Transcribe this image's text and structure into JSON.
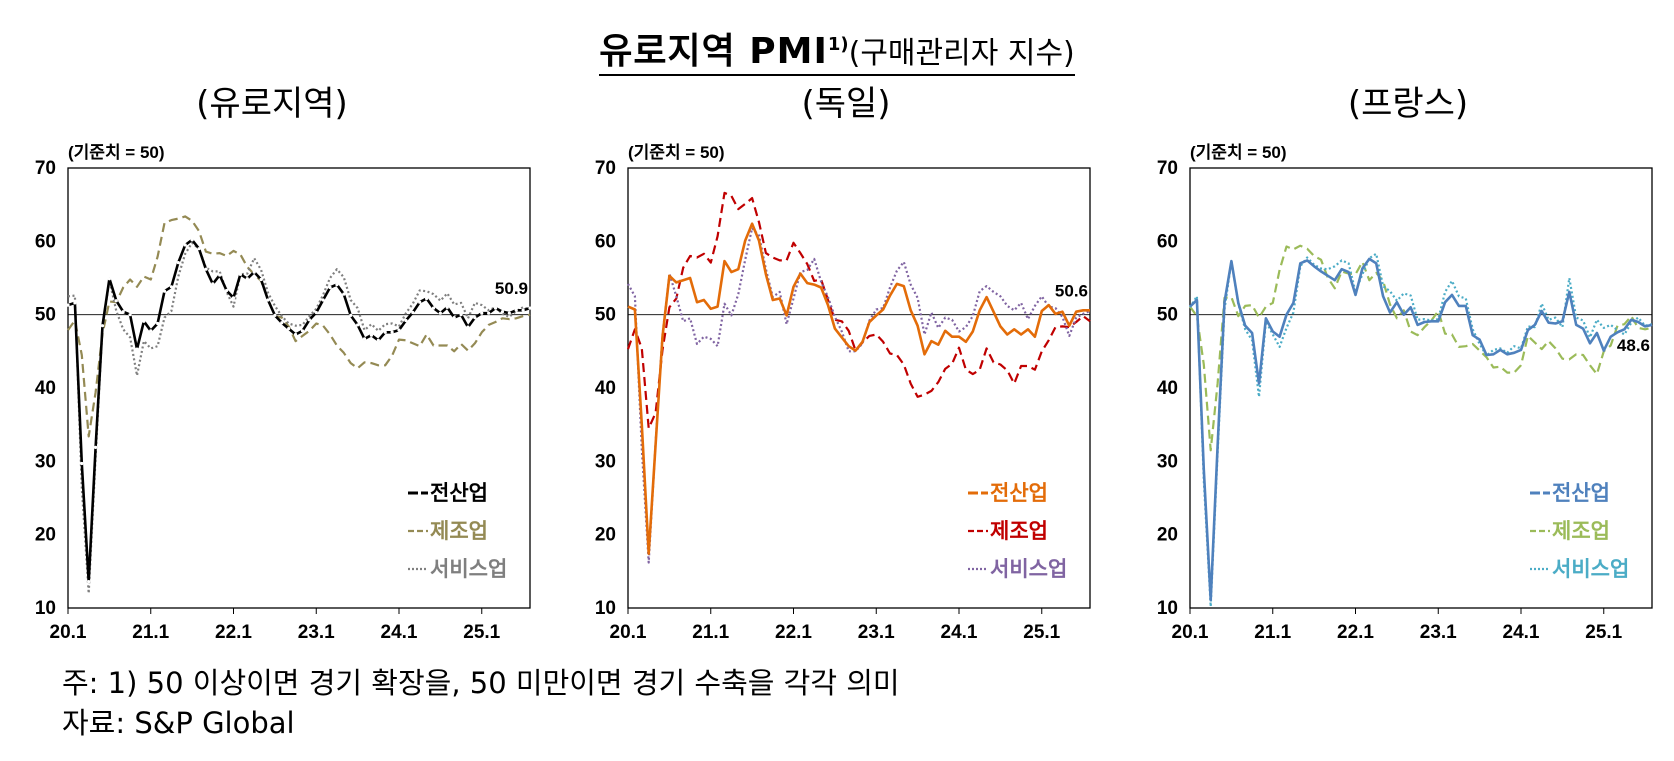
{
  "page": {
    "title_main": "유로지역 PMI",
    "title_sup": "1)",
    "title_sub": "(구매관리자 지수)",
    "note": "주: 1) 50 이상이면 경기 확장을, 50 미만이면 경기 수축을 각각 의미",
    "source": "자료: S&P Global"
  },
  "chart_data": [
    {
      "type": "line",
      "title": "(유로지역)",
      "unit_note": "(기준치 = 50)",
      "ylim": [
        10,
        70
      ],
      "yticks": [
        10,
        20,
        30,
        40,
        50,
        60,
        70
      ],
      "xlim": [
        2020.0,
        2025.583
      ],
      "xticks": [
        {
          "x": 2020.0,
          "label": "20.1"
        },
        {
          "x": 2021.0,
          "label": "21.1"
        },
        {
          "x": 2022.0,
          "label": "22.1"
        },
        {
          "x": 2023.0,
          "label": "23.1"
        },
        {
          "x": 2024.0,
          "label": "24.1"
        },
        {
          "x": 2025.0,
          "label": "25.1"
        }
      ],
      "reference_line": 50,
      "end_label": "50.9",
      "legend_position": "bottom-right",
      "series": [
        {
          "name": "전산업",
          "color": "#000000",
          "style": "solid-marker",
          "values": [
            51.3,
            51.6,
            29.7,
            13.6,
            31.9,
            48.5,
            54.9,
            51.9,
            50.4,
            50.0,
            45.3,
            49.1,
            47.8,
            48.8,
            53.2,
            53.8,
            57.1,
            59.5,
            60.2,
            59.0,
            56.2,
            54.2,
            55.4,
            53.3,
            52.3,
            55.5,
            54.9,
            55.8,
            54.8,
            52.0,
            49.9,
            48.9,
            48.1,
            47.3,
            47.8,
            49.3,
            50.3,
            52.0,
            53.7,
            54.1,
            52.8,
            49.9,
            48.6,
            46.7,
            47.2,
            46.5,
            47.6,
            47.6,
            47.9,
            49.2,
            50.3,
            51.7,
            52.2,
            50.9,
            50.2,
            51.0,
            49.6,
            50.0,
            48.3,
            49.6,
            50.2,
            50.2,
            50.9,
            50.4,
            50.2,
            50.6,
            50.6,
            50.9
          ]
        },
        {
          "name": "제조업",
          "color": "#948A54",
          "style": "dashed",
          "values": [
            47.9,
            49.2,
            44.5,
            33.4,
            39.4,
            47.4,
            51.8,
            51.7,
            53.7,
            54.8,
            53.8,
            55.2,
            54.8,
            57.9,
            62.5,
            62.9,
            63.1,
            63.4,
            62.8,
            61.4,
            58.6,
            58.3,
            58.4,
            58.0,
            58.7,
            58.2,
            56.5,
            55.5,
            54.6,
            52.1,
            49.8,
            49.6,
            48.4,
            46.4,
            47.1,
            47.8,
            48.8,
            48.5,
            47.3,
            45.8,
            44.8,
            43.4,
            42.7,
            43.5,
            43.4,
            43.1,
            43.1,
            44.4,
            46.6,
            46.5,
            46.1,
            45.7,
            47.3,
            45.8,
            45.8,
            45.8,
            45.0,
            46.0,
            45.1,
            46.1,
            47.6,
            48.6,
            49.0,
            49.5,
            49.4,
            49.5,
            49.8,
            50.0
          ]
        },
        {
          "name": "서비스업",
          "color": "#7F7F7F",
          "style": "dotted",
          "values": [
            52.5,
            52.6,
            26.4,
            12.0,
            30.5,
            48.3,
            54.7,
            50.5,
            48.0,
            46.9,
            41.7,
            46.4,
            45.4,
            45.7,
            49.6,
            50.5,
            55.2,
            58.3,
            59.8,
            59.0,
            56.4,
            55.9,
            55.9,
            53.1,
            51.1,
            55.5,
            55.6,
            57.7,
            56.1,
            53.0,
            51.2,
            49.8,
            48.8,
            48.5,
            48.6,
            49.8,
            50.8,
            52.7,
            55.0,
            56.2,
            55.1,
            52.0,
            50.9,
            47.9,
            48.7,
            47.8,
            48.7,
            48.8,
            48.4,
            50.2,
            51.5,
            53.3,
            53.2,
            52.8,
            51.9,
            52.9,
            51.4,
            51.6,
            49.5,
            51.6,
            51.3,
            50.6,
            51.0,
            50.1,
            49.7,
            50.5,
            51.0,
            50.7
          ]
        }
      ]
    },
    {
      "type": "line",
      "title": "(독일)",
      "unit_note": "(기준치 = 50)",
      "ylim": [
        10,
        70
      ],
      "yticks": [
        10,
        20,
        30,
        40,
        50,
        60,
        70
      ],
      "xlim": [
        2020.0,
        2025.583
      ],
      "xticks": [
        {
          "x": 2020.0,
          "label": "20.1"
        },
        {
          "x": 2021.0,
          "label": "21.1"
        },
        {
          "x": 2022.0,
          "label": "22.1"
        },
        {
          "x": 2023.0,
          "label": "23.1"
        },
        {
          "x": 2024.0,
          "label": "24.1"
        },
        {
          "x": 2025.0,
          "label": "25.1"
        }
      ],
      "reference_line": 50,
      "end_label": "50.6",
      "legend_position": "bottom-right",
      "series": [
        {
          "name": "전산업",
          "color": "#E36C09",
          "style": "solid",
          "values": [
            51.1,
            50.7,
            35.0,
            17.4,
            32.3,
            47.0,
            55.3,
            54.4,
            54.7,
            55.0,
            51.7,
            52.0,
            50.8,
            51.1,
            57.3,
            55.8,
            56.2,
            60.1,
            62.4,
            60.1,
            55.5,
            52.0,
            52.2,
            49.9,
            53.8,
            55.6,
            54.3,
            54.1,
            53.7,
            51.3,
            48.1,
            46.9,
            45.7,
            45.1,
            46.3,
            49.0,
            49.9,
            50.7,
            52.6,
            54.2,
            53.9,
            50.6,
            48.5,
            44.6,
            46.4,
            45.9,
            47.8,
            47.0,
            47.0,
            46.3,
            47.7,
            50.6,
            52.4,
            50.4,
            48.4,
            47.3,
            48.0,
            47.3,
            48.0,
            47.0,
            50.5,
            51.3,
            50.1,
            50.4,
            48.5,
            50.4,
            50.6,
            50.6
          ]
        },
        {
          "name": "제조업",
          "color": "#C00000",
          "style": "dashed",
          "values": [
            45.3,
            48.0,
            45.4,
            34.5,
            36.6,
            45.2,
            51.0,
            52.2,
            56.4,
            58.0,
            57.8,
            58.3,
            57.1,
            60.7,
            66.6,
            66.2,
            64.4,
            65.1,
            65.9,
            62.6,
            58.4,
            57.8,
            57.4,
            57.4,
            59.8,
            58.4,
            56.9,
            54.6,
            54.8,
            52.0,
            49.3,
            49.1,
            47.8,
            45.1,
            46.2,
            47.1,
            47.3,
            46.3,
            44.7,
            44.5,
            43.2,
            40.6,
            38.8,
            39.1,
            39.6,
            40.8,
            42.6,
            43.3,
            45.5,
            42.5,
            41.9,
            42.5,
            45.4,
            43.5,
            43.2,
            42.4,
            40.6,
            43.0,
            43.0,
            42.5,
            45.0,
            46.5,
            48.3,
            48.4,
            48.3,
            49.0,
            49.8,
            49.1
          ]
        },
        {
          "name": "서비스업",
          "color": "#8064A2",
          "style": "dotted",
          "values": [
            54.2,
            52.5,
            31.7,
            16.2,
            32.6,
            47.3,
            55.6,
            52.5,
            49.1,
            49.5,
            46.0,
            47.0,
            46.7,
            45.7,
            51.5,
            49.9,
            52.8,
            57.5,
            61.8,
            60.8,
            56.2,
            52.4,
            53.1,
            48.7,
            52.2,
            55.8,
            56.1,
            57.6,
            54.5,
            52.4,
            49.7,
            47.7,
            45.0,
            45.0,
            46.1,
            49.2,
            50.7,
            50.9,
            53.7,
            56.0,
            57.2,
            54.1,
            52.3,
            47.3,
            50.3,
            48.2,
            49.6,
            49.3,
            47.7,
            48.3,
            49.8,
            53.2,
            53.9,
            53.1,
            52.5,
            51.2,
            50.6,
            51.6,
            49.4,
            51.2,
            52.5,
            51.1,
            50.9,
            49.7,
            47.1,
            49.6,
            50.1,
            50.5
          ]
        }
      ]
    },
    {
      "type": "line",
      "title": "(프랑스)",
      "unit_note": "(기준치 = 50)",
      "ylim": [
        10,
        70
      ],
      "yticks": [
        10,
        20,
        30,
        40,
        50,
        60,
        70
      ],
      "xlim": [
        2020.0,
        2025.583
      ],
      "xticks": [
        {
          "x": 2020.0,
          "label": "20.1"
        },
        {
          "x": 2021.0,
          "label": "21.1"
        },
        {
          "x": 2022.0,
          "label": "22.1"
        },
        {
          "x": 2023.0,
          "label": "23.1"
        },
        {
          "x": 2024.0,
          "label": "24.1"
        },
        {
          "x": 2025.0,
          "label": "25.1"
        }
      ],
      "reference_line": 50,
      "end_label": "48.6",
      "legend_position": "bottom-right",
      "series": [
        {
          "name": "전산업",
          "color": "#4F81BD",
          "style": "solid",
          "values": [
            51.1,
            52.0,
            28.9,
            11.1,
            32.1,
            51.7,
            57.3,
            51.6,
            48.5,
            47.5,
            40.6,
            49.5,
            47.7,
            47.0,
            50.0,
            51.6,
            57.0,
            57.4,
            56.6,
            55.9,
            55.3,
            54.7,
            56.2,
            55.8,
            52.7,
            56.3,
            57.6,
            57.0,
            52.5,
            50.3,
            51.7,
            50.0,
            51.0,
            48.6,
            49.0,
            49.1,
            49.1,
            51.7,
            52.7,
            51.2,
            51.2,
            47.2,
            46.6,
            44.5,
            44.6,
            45.2,
            44.6,
            44.8,
            45.2,
            47.9,
            48.6,
            50.5,
            48.9,
            48.8,
            49.1,
            53.1,
            48.6,
            48.1,
            46.1,
            47.5,
            45.1,
            47.0,
            47.6,
            48.0,
            49.3,
            49.0,
            48.4,
            48.6
          ]
        },
        {
          "name": "제조업",
          "color": "#9BBB59",
          "style": "dashed",
          "values": [
            51.1,
            49.8,
            43.2,
            31.5,
            40.6,
            52.3,
            52.4,
            49.8,
            51.2,
            51.3,
            49.6,
            51.1,
            51.6,
            56.1,
            59.3,
            58.9,
            59.4,
            59.0,
            58.0,
            57.5,
            55.0,
            53.6,
            55.9,
            55.6,
            55.5,
            57.2,
            54.7,
            55.7,
            54.6,
            51.4,
            49.5,
            50.6,
            47.7,
            47.2,
            48.3,
            49.2,
            50.5,
            47.4,
            47.3,
            45.6,
            45.7,
            46.0,
            45.1,
            44.2,
            42.8,
            42.9,
            42.1,
            42.1,
            43.1,
            47.1,
            46.2,
            45.3,
            46.4,
            45.4,
            44.0,
            43.9,
            44.6,
            44.5,
            43.1,
            41.9,
            45.0,
            45.8,
            48.5,
            48.7,
            49.8,
            48.2,
            48.0,
            48.2
          ]
        },
        {
          "name": "서비스업",
          "color": "#4BACC6",
          "style": "dotted",
          "values": [
            51.0,
            52.5,
            27.4,
            10.2,
            31.1,
            50.7,
            57.3,
            51.5,
            48.0,
            46.5,
            38.8,
            49.1,
            47.3,
            45.6,
            48.2,
            50.3,
            56.6,
            57.8,
            56.8,
            56.3,
            56.2,
            56.6,
            57.4,
            57.0,
            53.1,
            55.5,
            57.7,
            58.3,
            53.9,
            53.2,
            51.9,
            52.9,
            52.6,
            49.3,
            49.4,
            49.2,
            49.4,
            53.1,
            54.6,
            52.5,
            52.2,
            48.0,
            46.0,
            44.4,
            45.2,
            45.4,
            44.8,
            45.7,
            45.4,
            48.4,
            48.3,
            51.5,
            49.3,
            49.6,
            48.3,
            55.0,
            49.6,
            49.2,
            46.9,
            49.3,
            48.2,
            48.6,
            47.9,
            47.3,
            48.9,
            49.6,
            48.5,
            48.7
          ]
        }
      ]
    }
  ]
}
